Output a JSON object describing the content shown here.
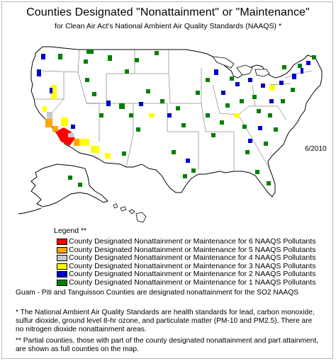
{
  "title": "Counties Designated \"Nonattainment\" or \"Maintenance\"",
  "subtitle": "for Clean Air Act's National Ambient Air Quality Standards (NAAQS) *",
  "date": "6/2010",
  "legend": {
    "title": "Legend **",
    "items": [
      {
        "label": "County Designated Nonattainment or Maintenance for 6 NAAQS Pollutants",
        "color": "#ff0000"
      },
      {
        "label": "County Designated Nonattainment or Maintenance for 5 NAAQS Pollutants",
        "color": "#ffa500"
      },
      {
        "label": "County Designated Nonattainment or Maintenance for 4 NAAQS Pollutants",
        "color": "#c8c8c8"
      },
      {
        "label": "County Designated Nonattainment or Maintenance for 3 NAAQS Pollutants",
        "color": "#ffff00"
      },
      {
        "label": "County Designated Nonattainment or Maintenance for 2 NAAQS Pollutants",
        "color": "#0000cc"
      },
      {
        "label": "County Designated Nonattainment or Maintenance for 1 NAAQS Pollutants",
        "color": "#008000"
      }
    ]
  },
  "notes": {
    "guam": "Guam - Piti and Tanguisson Counties are designated nonattainment for the SO2 NAAQS",
    "naaqs_1": "* The National Ambient Air Quality Standards are health standards for lead, carbon monoxide,",
    "naaqs_2": "sulfur dioxide, ground level 8-hr ozone, and particulate matter (PM-10 and PM2.5).  There are",
    "naaqs_3": "no nitrogen dioxide nonattainment areas.",
    "partial_1": "** Partial counties, those with part of the county designated nonattainment and part attainment,",
    "partial_2": "are shown as full counties on the map."
  },
  "colors": {
    "land": "#ffffff",
    "border": "#000000",
    "six": "#ff0000",
    "five": "#ffa500",
    "four": "#c8c8c8",
    "three": "#ffff00",
    "two": "#0000cc",
    "one": "#008000"
  }
}
